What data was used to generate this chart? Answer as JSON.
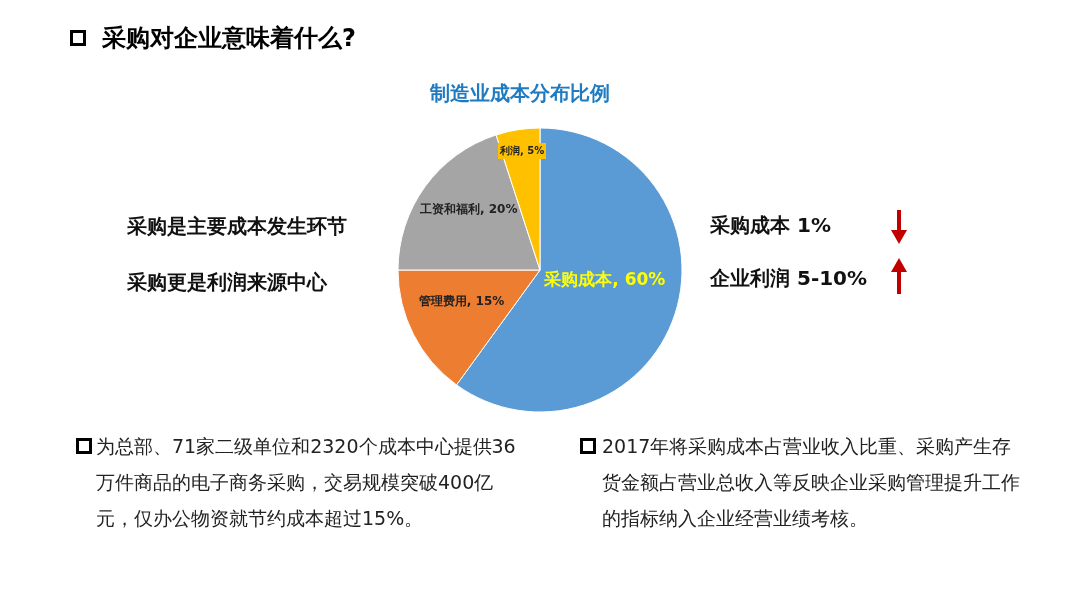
{
  "chart_data": {
    "type": "pie",
    "title": "制造业成本分布比例",
    "categories": [
      "采购成本",
      "管理费用",
      "工资和福利",
      "利润"
    ],
    "values": [
      60,
      15,
      20,
      5
    ],
    "value_labels": [
      "60%",
      "15%",
      "20%",
      "5%"
    ],
    "colors": [
      "#5b9bd5",
      "#ed7d31",
      "#a5a5a5",
      "#ffc000"
    ],
    "annotations": [
      "采购对企业意味着什么?",
      "采购是主要成本发生环节",
      "采购更是利润来源中心",
      "采购成本 1%",
      "企业利润 5-10%",
      "为总部、71家二级单位和2320个成本中心提供36万件商品的电子商务采购，交易规模突破400亿元，仅办公物资就节约成本超过15%。",
      "2017年将采购成本占营业收入比重、采购产生存货金额占营业总收入等反映企业采购管理提升工作的指标纳入企业经营业绩考核。"
    ]
  }
}
